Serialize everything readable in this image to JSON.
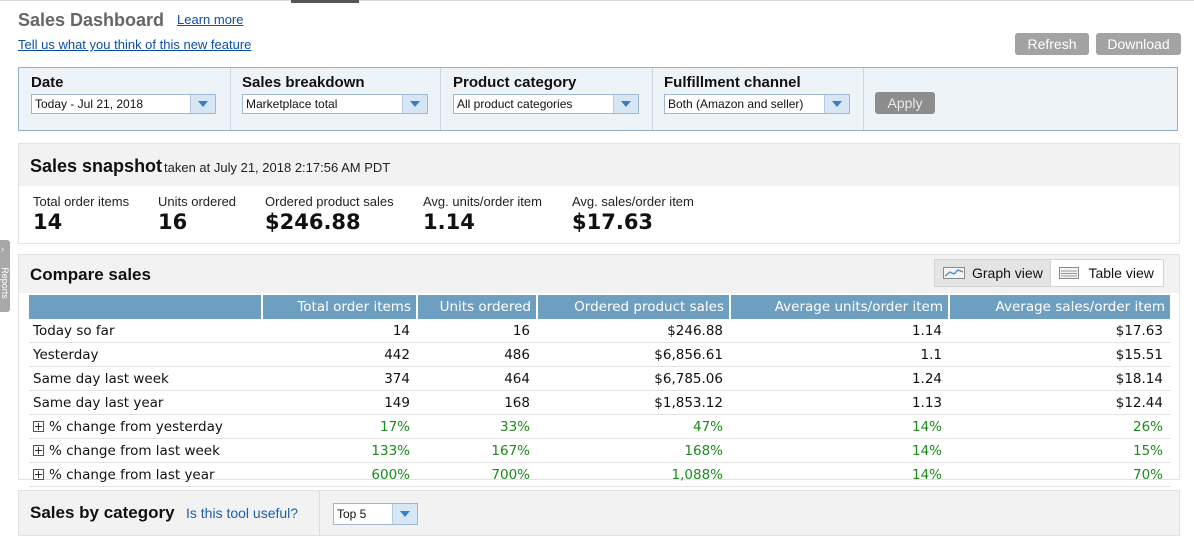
{
  "header": {
    "title": "Sales Dashboard",
    "learn_more": "Learn more",
    "feedback_link": "Tell us what you think of this new feature",
    "refresh_label": "Refresh",
    "download_label": "Download"
  },
  "filters": {
    "date": {
      "label": "Date",
      "value": "Today - Jul 21, 2018"
    },
    "breakdown": {
      "label": "Sales breakdown",
      "value": "Marketplace total"
    },
    "category": {
      "label": "Product category",
      "value": "All product categories"
    },
    "channel": {
      "label": "Fulfillment channel",
      "value": "Both (Amazon and seller)"
    },
    "apply_label": "Apply"
  },
  "snapshot": {
    "title": "Sales snapshot",
    "subtitle": "taken at July 21, 2018 2:17:56 AM PDT",
    "metrics": [
      {
        "label": "Total order items",
        "value": "14"
      },
      {
        "label": "Units ordered",
        "value": "16"
      },
      {
        "label": "Ordered product sales",
        "value": "$246.88"
      },
      {
        "label": "Avg. units/order item",
        "value": "1.14"
      },
      {
        "label": "Avg. sales/order item",
        "value": "$17.63"
      }
    ]
  },
  "compare": {
    "title": "Compare sales",
    "graph_view": "Graph view",
    "table_view": "Table view",
    "columns": [
      "",
      "Total order items",
      "Units ordered",
      "Ordered product sales",
      "Average units/order item",
      "Average sales/order item"
    ],
    "rows": [
      {
        "label": "Today so far",
        "cells": [
          "14",
          "16",
          "$246.88",
          "1.14",
          "$17.63"
        ]
      },
      {
        "label": "Yesterday",
        "cells": [
          "442",
          "486",
          "$6,856.61",
          "1.1",
          "$15.51"
        ]
      },
      {
        "label": "Same day last week",
        "cells": [
          "374",
          "464",
          "$6,785.06",
          "1.24",
          "$18.14"
        ]
      },
      {
        "label": "Same day last year",
        "cells": [
          "149",
          "168",
          "$1,853.12",
          "1.13",
          "$12.44"
        ]
      },
      {
        "label": "% change from yesterday",
        "cells": [
          "17%",
          "33%",
          "47%",
          "14%",
          "26%"
        ]
      },
      {
        "label": "% change from last week",
        "cells": [
          "133%",
          "167%",
          "168%",
          "14%",
          "15%"
        ]
      },
      {
        "label": "% change from last year",
        "cells": [
          "600%",
          "700%",
          "1,088%",
          "14%",
          "70%"
        ]
      }
    ],
    "positive_color": "#1d8a1d"
  },
  "category_panel": {
    "title": "Sales by category",
    "useful_link": "Is this tool useful?",
    "top_select": "Top 5"
  },
  "side_tab": {
    "label": "Reports"
  },
  "colors": {
    "header_blue": "#6f9fc0",
    "filter_bg": "#eef3f8",
    "link": "#0b4fa3"
  }
}
